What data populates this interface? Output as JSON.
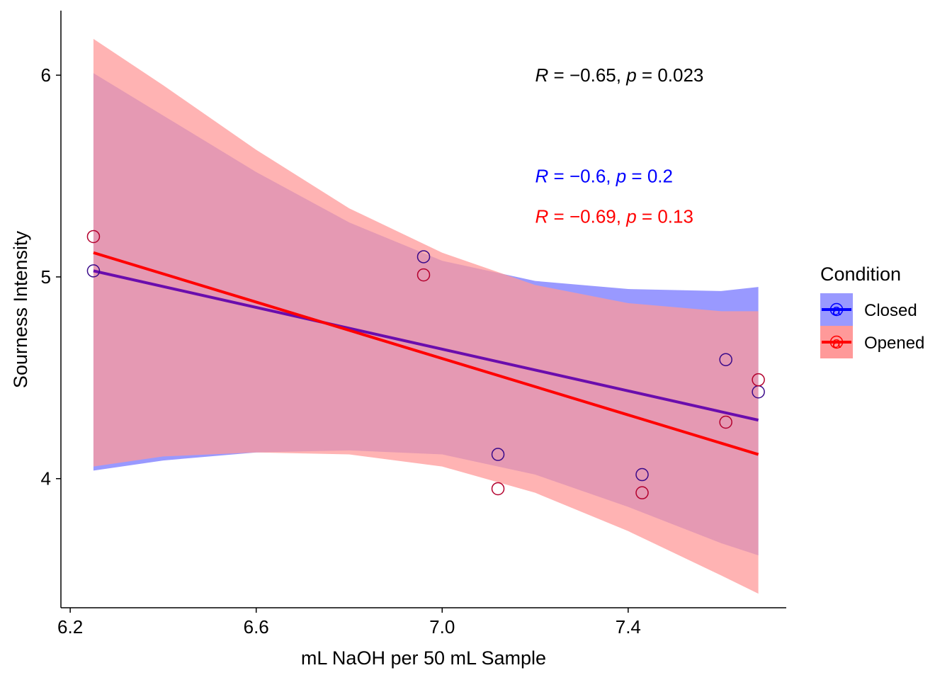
{
  "chart_data": {
    "type": "scatter",
    "xlabel": "mL NaOH per 50 mL Sample",
    "ylabel": "Sourness Intensity",
    "xlim": [
      6.18,
      7.74
    ],
    "ylim": [
      3.36,
      6.32
    ],
    "x_ticks": [
      {
        "value": 6.2,
        "label": "6.2"
      },
      {
        "value": 6.6,
        "label": "6.6"
      },
      {
        "value": 7.0,
        "label": "7.0"
      },
      {
        "value": 7.4,
        "label": "7.4"
      }
    ],
    "y_ticks": [
      {
        "value": 4,
        "label": "4"
      },
      {
        "value": 5,
        "label": "5"
      },
      {
        "value": 6,
        "label": "6"
      }
    ],
    "legend": {
      "title": "Condition",
      "position": "right",
      "glyph_text": "a"
    },
    "series": [
      {
        "name": "Closed",
        "color": "#0000ff",
        "band_color": "#9999ff",
        "points": [
          {
            "x": 6.25,
            "y": 5.03
          },
          {
            "x": 6.96,
            "y": 5.1
          },
          {
            "x": 7.12,
            "y": 4.12
          },
          {
            "x": 7.43,
            "y": 4.02
          },
          {
            "x": 7.61,
            "y": 4.59
          },
          {
            "x": 7.68,
            "y": 4.43
          }
        ],
        "fit": [
          {
            "x": 6.25,
            "y": 5.03
          },
          {
            "x": 7.68,
            "y": 4.29
          }
        ],
        "band_upper": [
          {
            "x": 6.25,
            "y": 6.01
          },
          {
            "x": 6.4,
            "y": 5.8
          },
          {
            "x": 6.6,
            "y": 5.52
          },
          {
            "x": 6.8,
            "y": 5.27
          },
          {
            "x": 7.0,
            "y": 5.08
          },
          {
            "x": 7.2,
            "y": 4.98
          },
          {
            "x": 7.4,
            "y": 4.94
          },
          {
            "x": 7.6,
            "y": 4.93
          },
          {
            "x": 7.68,
            "y": 4.95
          }
        ],
        "band_lower": [
          {
            "x": 6.25,
            "y": 4.04
          },
          {
            "x": 6.4,
            "y": 4.09
          },
          {
            "x": 6.6,
            "y": 4.13
          },
          {
            "x": 6.8,
            "y": 4.14
          },
          {
            "x": 7.0,
            "y": 4.12
          },
          {
            "x": 7.2,
            "y": 4.02
          },
          {
            "x": 7.4,
            "y": 3.86
          },
          {
            "x": 7.6,
            "y": 3.68
          },
          {
            "x": 7.68,
            "y": 3.62
          }
        ],
        "annotation": {
          "r": "−0.6",
          "p": "0.2"
        }
      },
      {
        "name": "Opened",
        "color": "#ff0000",
        "band_color": "#ff9999",
        "points": [
          {
            "x": 6.25,
            "y": 5.2
          },
          {
            "x": 6.96,
            "y": 5.01
          },
          {
            "x": 7.12,
            "y": 3.95
          },
          {
            "x": 7.43,
            "y": 3.93
          },
          {
            "x": 7.61,
            "y": 4.28
          },
          {
            "x": 7.68,
            "y": 4.49
          }
        ],
        "fit": [
          {
            "x": 6.25,
            "y": 5.12
          },
          {
            "x": 7.68,
            "y": 4.12
          }
        ],
        "band_upper": [
          {
            "x": 6.25,
            "y": 6.18
          },
          {
            "x": 6.4,
            "y": 5.95
          },
          {
            "x": 6.6,
            "y": 5.63
          },
          {
            "x": 6.8,
            "y": 5.34
          },
          {
            "x": 7.0,
            "y": 5.12
          },
          {
            "x": 7.2,
            "y": 4.96
          },
          {
            "x": 7.4,
            "y": 4.87
          },
          {
            "x": 7.6,
            "y": 4.83
          },
          {
            "x": 7.68,
            "y": 4.83
          }
        ],
        "band_lower": [
          {
            "x": 6.25,
            "y": 4.06
          },
          {
            "x": 6.4,
            "y": 4.11
          },
          {
            "x": 6.6,
            "y": 4.13
          },
          {
            "x": 6.8,
            "y": 4.12
          },
          {
            "x": 7.0,
            "y": 4.06
          },
          {
            "x": 7.2,
            "y": 3.93
          },
          {
            "x": 7.4,
            "y": 3.74
          },
          {
            "x": 7.6,
            "y": 3.52
          },
          {
            "x": 7.68,
            "y": 3.43
          }
        ],
        "annotation": {
          "r": "−0.69",
          "p": "0.13"
        }
      }
    ],
    "overall_annotation": {
      "r": "−0.65",
      "p": "0.023",
      "color": "#000000"
    },
    "overlap_color": "#c15b95",
    "annotation_x": 7.2,
    "annotation_y": [
      6.0,
      5.5,
      5.3
    ]
  }
}
